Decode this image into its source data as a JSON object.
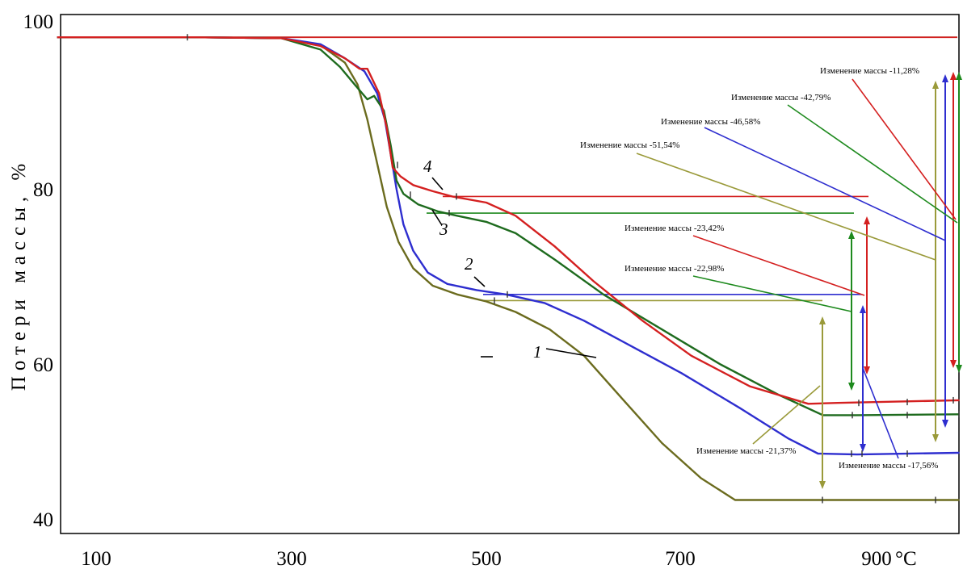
{
  "chart_data": {
    "type": "line",
    "xlabel": "°C",
    "ylabel": "Потери массы, %",
    "xlim": [
      55,
      985
    ],
    "ylim": [
      37,
      100
    ],
    "x_ticks": [
      "100",
      "300",
      "500",
      "700",
      "900"
    ],
    "y_ticks": [
      "40",
      "60",
      "80",
      "100"
    ],
    "series": [
      {
        "name": "1",
        "color": "#6b6b1e",
        "points": [
          [
            60,
            97.4
          ],
          [
            200,
            97.4
          ],
          [
            290,
            97.3
          ],
          [
            330,
            96.5
          ],
          [
            355,
            94.5
          ],
          [
            368,
            92
          ],
          [
            378,
            88
          ],
          [
            388,
            83
          ],
          [
            398,
            78
          ],
          [
            410,
            74
          ],
          [
            425,
            71
          ],
          [
            445,
            69
          ],
          [
            470,
            68
          ],
          [
            500,
            67.2
          ],
          [
            530,
            66
          ],
          [
            565,
            64
          ],
          [
            600,
            61
          ],
          [
            640,
            56
          ],
          [
            680,
            51
          ],
          [
            720,
            47
          ],
          [
            755,
            44.5
          ],
          [
            800,
            44.5
          ],
          [
            985,
            44.5
          ]
        ]
      },
      {
        "name": "2",
        "color": "#2e2ecf",
        "points": [
          [
            60,
            97.4
          ],
          [
            200,
            97.4
          ],
          [
            290,
            97.3
          ],
          [
            330,
            96.6
          ],
          [
            355,
            95
          ],
          [
            375,
            93.5
          ],
          [
            388,
            91
          ],
          [
            396,
            88
          ],
          [
            402,
            84
          ],
          [
            408,
            80
          ],
          [
            415,
            76
          ],
          [
            425,
            73
          ],
          [
            440,
            70.5
          ],
          [
            460,
            69.2
          ],
          [
            490,
            68.5
          ],
          [
            520,
            68
          ],
          [
            560,
            67
          ],
          [
            600,
            65
          ],
          [
            650,
            62
          ],
          [
            700,
            59
          ],
          [
            760,
            55
          ],
          [
            810,
            51.5
          ],
          [
            840,
            49.8
          ],
          [
            880,
            49.7
          ],
          [
            985,
            49.9
          ]
        ]
      },
      {
        "name": "3",
        "color": "#1e6b1e",
        "points": [
          [
            60,
            97.4
          ],
          [
            200,
            97.4
          ],
          [
            290,
            97.3
          ],
          [
            330,
            96
          ],
          [
            350,
            94
          ],
          [
            365,
            92
          ],
          [
            378,
            90.3
          ],
          [
            385,
            90.7
          ],
          [
            395,
            89
          ],
          [
            402,
            85
          ],
          [
            408,
            81
          ],
          [
            415,
            79.5
          ],
          [
            430,
            78.3
          ],
          [
            450,
            77.5
          ],
          [
            470,
            77
          ],
          [
            500,
            76.3
          ],
          [
            530,
            75
          ],
          [
            570,
            72
          ],
          [
            620,
            68
          ],
          [
            680,
            64
          ],
          [
            740,
            60
          ],
          [
            800,
            56.5
          ],
          [
            845,
            54.2
          ],
          [
            880,
            54.2
          ],
          [
            985,
            54.3
          ]
        ]
      },
      {
        "name": "4",
        "color": "#d42020",
        "points": [
          [
            60,
            97.4
          ],
          [
            200,
            97.4
          ],
          [
            290,
            97.3
          ],
          [
            330,
            96.4
          ],
          [
            355,
            95
          ],
          [
            370,
            93.8
          ],
          [
            378,
            93.8
          ],
          [
            390,
            91
          ],
          [
            398,
            87
          ],
          [
            404,
            82.5
          ],
          [
            412,
            81.5
          ],
          [
            425,
            80.5
          ],
          [
            445,
            79.8
          ],
          [
            465,
            79.2
          ],
          [
            500,
            78.5
          ],
          [
            530,
            77
          ],
          [
            570,
            73.5
          ],
          [
            610,
            69.5
          ],
          [
            660,
            65
          ],
          [
            710,
            61
          ],
          [
            770,
            57.5
          ],
          [
            830,
            55.5
          ],
          [
            860,
            55.6
          ],
          [
            985,
            55.9
          ]
        ]
      }
    ],
    "curve_labels": [
      "1",
      "2",
      "3",
      "4"
    ],
    "annotations": [
      "Изменение массы  -11,28%",
      "Изменение массы  -42,79%",
      "Изменение массы  -46,58%",
      "Изменение массы  -51,54%",
      "Изменение массы  -23,42%",
      "Изменение массы  -22,98%",
      "Изменение массы  -21,37%",
      "Изменение массы  -17,56%"
    ],
    "colors": {
      "red": "#d42020",
      "green": "#1e8a1e",
      "blue": "#2e2ecf",
      "olive": "#9a9a3a"
    }
  }
}
